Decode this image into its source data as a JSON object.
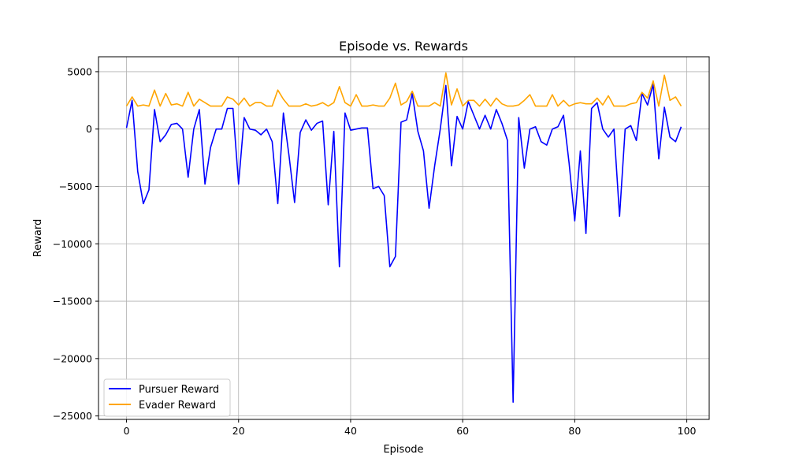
{
  "chart_data": {
    "type": "line",
    "title": "Episode vs. Rewards",
    "xlabel": "Episode",
    "ylabel": "Reward",
    "xlim": [
      -5,
      104
    ],
    "ylim": [
      -25300,
      6300
    ],
    "xticks": [
      0,
      20,
      40,
      60,
      80,
      100
    ],
    "xtick_labels": [
      "0",
      "20",
      "40",
      "60",
      "80",
      "100"
    ],
    "yticks": [
      5000,
      0,
      -5000,
      -10000,
      -15000,
      -20000,
      -25000
    ],
    "ytick_labels": [
      "5000",
      "0",
      "−5000",
      "−10000",
      "−15000",
      "−20000",
      "−25000"
    ],
    "grid": true,
    "legend_position": "bottom-left",
    "x": [
      0,
      1,
      2,
      3,
      4,
      5,
      6,
      7,
      8,
      9,
      10,
      11,
      12,
      13,
      14,
      15,
      16,
      17,
      18,
      19,
      20,
      21,
      22,
      23,
      24,
      25,
      26,
      27,
      28,
      29,
      30,
      31,
      32,
      33,
      34,
      35,
      36,
      37,
      38,
      39,
      40,
      41,
      42,
      43,
      44,
      45,
      46,
      47,
      48,
      49,
      50,
      51,
      52,
      53,
      54,
      55,
      56,
      57,
      58,
      59,
      60,
      61,
      62,
      63,
      64,
      65,
      66,
      67,
      68,
      69,
      70,
      71,
      72,
      73,
      74,
      75,
      76,
      77,
      78,
      79,
      80,
      81,
      82,
      83,
      84,
      85,
      86,
      87,
      88,
      89,
      90,
      91,
      92,
      93,
      94,
      95,
      96,
      97,
      98,
      99
    ],
    "series": [
      {
        "name": "Pursuer Reward",
        "color": "#0000ff",
        "values": [
          100,
          2500,
          -3700,
          -6500,
          -5300,
          1700,
          -1100,
          -500,
          400,
          500,
          0,
          -4200,
          0,
          1700,
          -4800,
          -1600,
          0,
          0,
          1800,
          1800,
          -4800,
          1000,
          0,
          -100,
          -500,
          0,
          -1100,
          -6500,
          1400,
          -2300,
          -6400,
          -300,
          800,
          -100,
          500,
          700,
          -6600,
          -200,
          -12000,
          1400,
          -100,
          0,
          100,
          100,
          -5200,
          -5000,
          -5800,
          -12000,
          -11100,
          600,
          800,
          3100,
          -200,
          -1900,
          -6900,
          -3200,
          0,
          3800,
          -3200,
          1100,
          0,
          2400,
          1200,
          0,
          1200,
          0,
          1700,
          500,
          -1000,
          -23800,
          1000,
          -3400,
          0,
          200,
          -1100,
          -1400,
          0,
          200,
          1200,
          -3000,
          -8000,
          -1900,
          -9100,
          1800,
          2300,
          0,
          -700,
          0,
          -7600,
          0,
          300,
          -1000,
          3100,
          2100,
          3900,
          -2600,
          1900,
          -700,
          -1100,
          200
        ]
      },
      {
        "name": "Evader Reward",
        "color": "#ffa500",
        "values": [
          2000,
          2800,
          2000,
          2100,
          2000,
          3400,
          2000,
          3100,
          2100,
          2200,
          2000,
          3200,
          2000,
          2600,
          2300,
          2000,
          2000,
          2000,
          2800,
          2600,
          2100,
          2700,
          2000,
          2300,
          2300,
          2000,
          2000,
          3400,
          2600,
          2000,
          2000,
          2000,
          2200,
          2000,
          2100,
          2300,
          2000,
          2300,
          3700,
          2300,
          2000,
          3000,
          2000,
          2000,
          2100,
          2000,
          2000,
          2700,
          4000,
          2100,
          2400,
          3300,
          2000,
          2000,
          2000,
          2300,
          2000,
          4900,
          2100,
          3500,
          2000,
          2500,
          2500,
          2000,
          2600,
          2000,
          2700,
          2200,
          2000,
          2000,
          2100,
          2500,
          3000,
          2000,
          2000,
          2000,
          3000,
          2000,
          2500,
          2000,
          2200,
          2300,
          2200,
          2200,
          2700,
          2100,
          2900,
          2000,
          2000,
          2000,
          2200,
          2300,
          3200,
          2700,
          4200,
          2000,
          4700,
          2500,
          2800,
          2000
        ]
      }
    ]
  }
}
